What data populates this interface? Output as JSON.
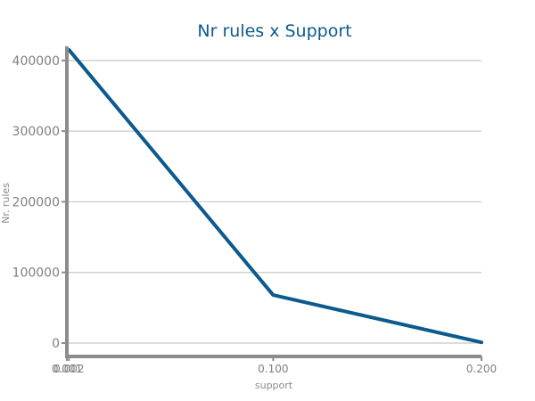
{
  "chart_data": {
    "type": "line",
    "title": "Nr rules x Support",
    "xlabel": "support",
    "ylabel": "Nr. rules",
    "x": [
      0.001,
      0.002,
      0.1,
      0.2
    ],
    "x_ticks": [
      "0.001",
      "0.002",
      "0.100",
      "0.200"
    ],
    "y_ticks": [
      "0",
      "100000",
      "200000",
      "300000",
      "400000"
    ],
    "xlim": [
      0.001,
      0.2
    ],
    "ylim": [
      0,
      420000
    ],
    "grid": true,
    "series": [
      {
        "values": [
          415000,
          415000,
          68000,
          1000
        ]
      }
    ],
    "colors": {
      "line": "#0c5a8e",
      "title": "#0c5a8e",
      "axis": "#8c8c8c",
      "grid": "#c8c8c8",
      "tick_text": "#7f7f7f"
    }
  }
}
